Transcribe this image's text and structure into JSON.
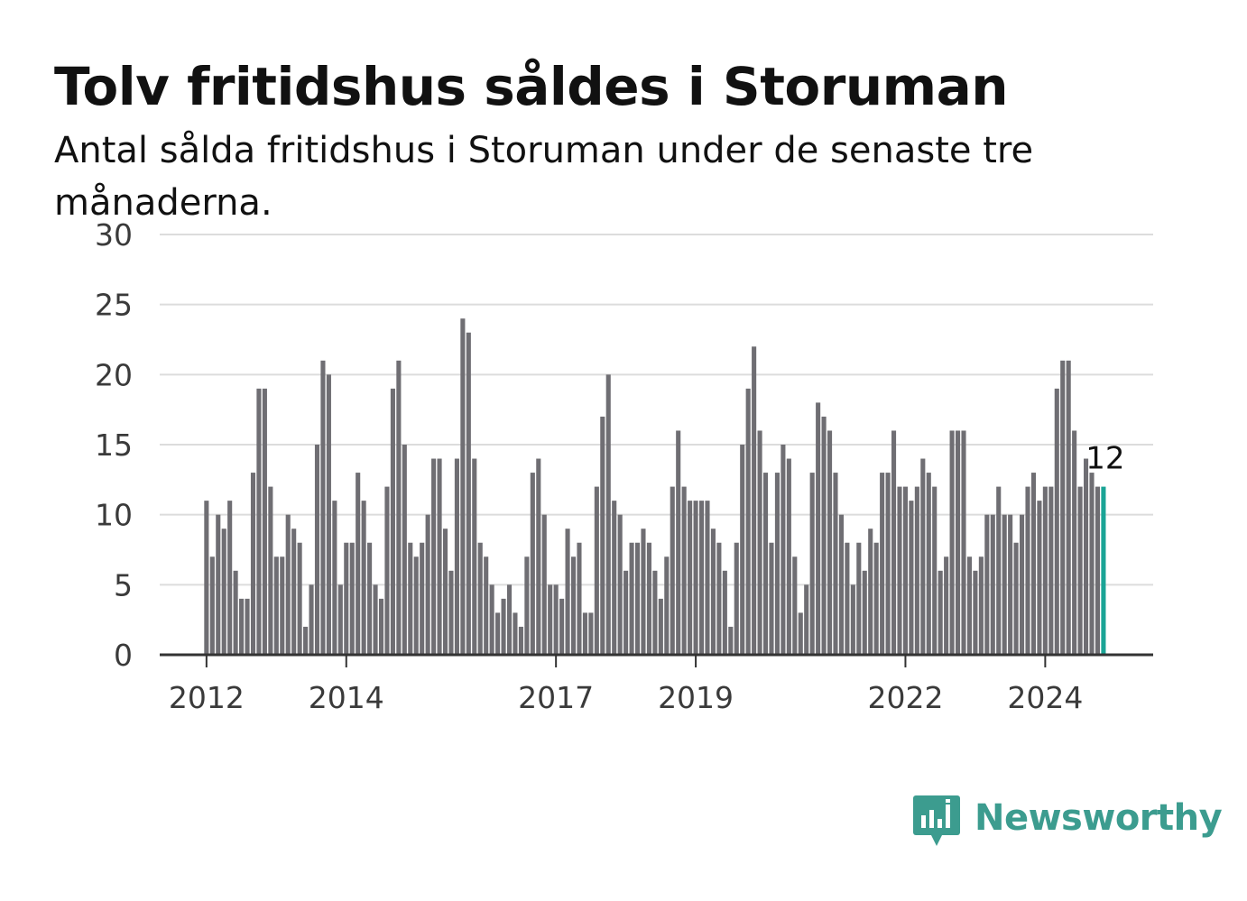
{
  "title": "Tolv fritidshus såldes i Storuman",
  "subtitle": "Antal sålda fritidshus i Storuman under de senaste tre månaderna.",
  "brand": {
    "name": "Newsworthy",
    "color": "#3c9c8f",
    "icon": "newsworthy-logo-icon"
  },
  "colors": {
    "bar": "#6f6e73",
    "highlight": "#1aa496",
    "grid": "#dcdcdc",
    "axis": "#333333"
  },
  "chart_data": {
    "type": "bar",
    "title": "Tolv fritidshus såldes i Storuman",
    "ylim": [
      0,
      30
    ],
    "yticks": [
      0,
      5,
      10,
      15,
      20,
      25,
      30
    ],
    "grid": true,
    "x_start": "2012-01",
    "xtick_labels": [
      {
        "label": "2012",
        "index": 0
      },
      {
        "label": "2014",
        "index": 24
      },
      {
        "label": "2017",
        "index": 60
      },
      {
        "label": "2019",
        "index": 84
      },
      {
        "label": "2022",
        "index": 120
      },
      {
        "label": "2024",
        "index": 144
      }
    ],
    "values": [
      11,
      7,
      10,
      9,
      11,
      6,
      4,
      4,
      13,
      19,
      19,
      12,
      7,
      7,
      10,
      9,
      8,
      2,
      5,
      15,
      21,
      20,
      11,
      5,
      8,
      8,
      13,
      11,
      8,
      5,
      4,
      12,
      19,
      21,
      15,
      8,
      7,
      8,
      10,
      14,
      14,
      9,
      6,
      14,
      24,
      23,
      14,
      8,
      7,
      5,
      3,
      4,
      5,
      3,
      2,
      7,
      13,
      14,
      10,
      5,
      5,
      4,
      9,
      7,
      8,
      3,
      3,
      12,
      17,
      20,
      11,
      10,
      6,
      8,
      8,
      9,
      8,
      6,
      4,
      7,
      12,
      16,
      12,
      11,
      11,
      11,
      11,
      9,
      8,
      6,
      2,
      8,
      15,
      19,
      22,
      16,
      13,
      8,
      13,
      15,
      14,
      7,
      3,
      5,
      13,
      18,
      17,
      16,
      13,
      10,
      8,
      5,
      8,
      6,
      9,
      8,
      13,
      13,
      16,
      12,
      12,
      11,
      12,
      14,
      13,
      12,
      6,
      7,
      16,
      16,
      16,
      7,
      6,
      7,
      10,
      10,
      12,
      10,
      10,
      8,
      10,
      12,
      13,
      11,
      12,
      12,
      19,
      21,
      21,
      16,
      12,
      14,
      13,
      12,
      12
    ],
    "highlight_index": 154,
    "highlight_label": "12"
  }
}
